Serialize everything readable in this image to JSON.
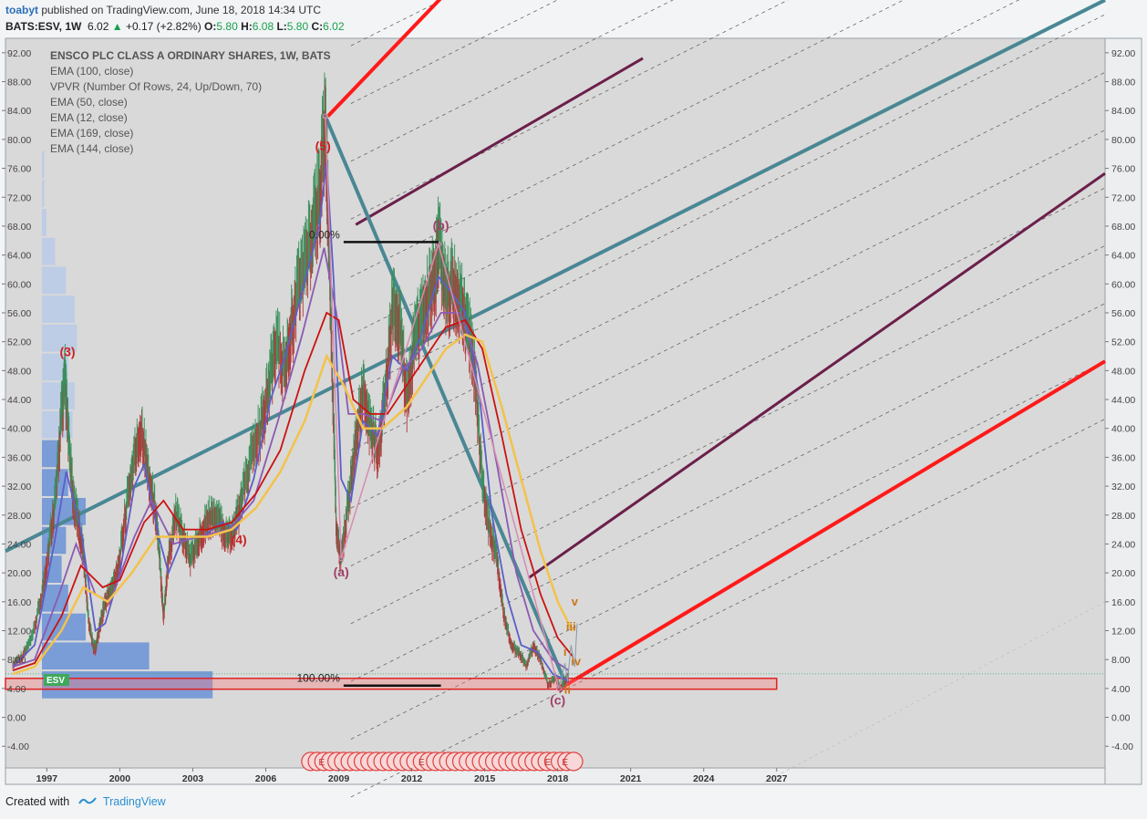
{
  "header": {
    "user": "toabyt",
    "published": " published on TradingView.com, June 18, 2018 14:34 UTC",
    "ticker": "BATS:ESV, 1W",
    "last": "6.02",
    "change": "+0.17 (+2.82%)",
    "o_label": "O:",
    "o_value": "5.80",
    "h_label": "H:",
    "h_value": "6.08",
    "l_label": "L:",
    "l_value": "5.80",
    "c_label": "C:",
    "c_value": "6.02"
  },
  "legend": {
    "title": "ENSCO PLC CLASS A ORDINARY SHARES, 1W, BATS",
    "items": [
      "EMA (100, close)",
      "VPVR (Number Of Rows, 24, Up/Down, 70)",
      "EMA (50, close)",
      "EMA (12, close)",
      "EMA (169, close)",
      "EMA (144, close)"
    ]
  },
  "footer": {
    "created_with": "Created with",
    "brand": "TradingView"
  },
  "colors": {
    "background": "#d9d9d9",
    "ema_red": "#cc1111",
    "ema_yellow": "#f3c24a",
    "ema_blue": "#5b5fc9",
    "ema_purple": "#8a5ab3",
    "pitchfork_teal": "#4a8794",
    "pitchfork_red": "#ff1a1a",
    "pitchfork_maroon": "#6b1f4a",
    "wave_label": "#a0406a",
    "subwave_label": "#c8761a",
    "vpvr_dark": "#6f95d6",
    "vpvr_light": "#b9cbe6"
  },
  "chart_data": {
    "type": "line",
    "symbol": "ESV",
    "timeframe": "1W",
    "last_price": 6.02,
    "y_ticks": [
      92,
      88,
      84,
      80,
      76,
      72,
      68,
      64,
      60,
      56,
      52,
      48,
      44,
      40,
      36,
      32,
      28,
      24,
      20,
      16,
      12,
      8,
      4,
      0,
      -4
    ],
    "y_tick_labels": [
      "92.00",
      "88.00",
      "84.00",
      "80.00",
      "76.00",
      "72.00",
      "68.00",
      "64.00",
      "60.00",
      "56.00",
      "52.00",
      "48.00",
      "44.00",
      "40.00",
      "36.00",
      "32.00",
      "28.00",
      "24.00",
      "20.00",
      "16.00",
      "12.00",
      "8.00",
      "4.00",
      "0.00",
      "-4.00"
    ],
    "ylim": [
      -7,
      94
    ],
    "x_ticks": [
      "1997",
      "2000",
      "2003",
      "2006",
      "2009",
      "2012",
      "2015",
      "2018",
      "2021",
      "2024",
      "2027"
    ],
    "x_tick_years": [
      1997,
      2000,
      2003,
      2006,
      2009,
      2012,
      2015,
      2018,
      2021,
      2024,
      2027
    ],
    "xlim": [
      1995.3,
      2040.5
    ],
    "grid": false,
    "price_series": [
      [
        1995.6,
        7.5
      ],
      [
        1996.0,
        8.5
      ],
      [
        1996.4,
        11
      ],
      [
        1996.8,
        17
      ],
      [
        1997.1,
        24
      ],
      [
        1997.4,
        32
      ],
      [
        1997.6,
        42
      ],
      [
        1997.75,
        46.5
      ],
      [
        1997.9,
        38
      ],
      [
        1998.1,
        30
      ],
      [
        1998.3,
        27
      ],
      [
        1998.5,
        23
      ],
      [
        1998.7,
        14
      ],
      [
        1998.9,
        10
      ],
      [
        1999.0,
        9.5
      ],
      [
        1999.2,
        13
      ],
      [
        1999.4,
        16
      ],
      [
        1999.7,
        18
      ],
      [
        2000.0,
        22
      ],
      [
        2000.3,
        30
      ],
      [
        2000.6,
        36
      ],
      [
        2000.9,
        40
      ],
      [
        2001.2,
        33
      ],
      [
        2001.5,
        28
      ],
      [
        2001.7,
        19
      ],
      [
        2001.8,
        14
      ],
      [
        2002.0,
        22
      ],
      [
        2002.3,
        28
      ],
      [
        2002.6,
        25
      ],
      [
        2002.9,
        22
      ],
      [
        2003.2,
        24
      ],
      [
        2003.5,
        27
      ],
      [
        2003.8,
        28
      ],
      [
        2004.1,
        27
      ],
      [
        2004.4,
        25
      ],
      [
        2004.7,
        26
      ],
      [
        2005.0,
        30
      ],
      [
        2005.4,
        36
      ],
      [
        2005.8,
        40
      ],
      [
        2006.1,
        45
      ],
      [
        2006.4,
        52
      ],
      [
        2006.8,
        48
      ],
      [
        2007.1,
        55
      ],
      [
        2007.5,
        62
      ],
      [
        2007.9,
        66
      ],
      [
        2008.2,
        72
      ],
      [
        2008.45,
        83
      ],
      [
        2008.6,
        64
      ],
      [
        2008.8,
        40
      ],
      [
        2008.9,
        26
      ],
      [
        2009.1,
        22
      ],
      [
        2009.4,
        30
      ],
      [
        2009.7,
        38
      ],
      [
        2010.0,
        45
      ],
      [
        2010.3,
        40
      ],
      [
        2010.6,
        37
      ],
      [
        2010.9,
        44
      ],
      [
        2011.2,
        56
      ],
      [
        2011.5,
        55
      ],
      [
        2011.8,
        44
      ],
      [
        2012.1,
        52
      ],
      [
        2012.4,
        55
      ],
      [
        2012.7,
        58
      ],
      [
        2013.0,
        62
      ],
      [
        2013.1,
        65.5
      ],
      [
        2013.4,
        58
      ],
      [
        2013.7,
        60
      ],
      [
        2014.0,
        57
      ],
      [
        2014.3,
        54
      ],
      [
        2014.6,
        48
      ],
      [
        2014.9,
        32
      ],
      [
        2015.2,
        26
      ],
      [
        2015.5,
        22
      ],
      [
        2015.8,
        14
      ],
      [
        2016.1,
        10
      ],
      [
        2016.4,
        9
      ],
      [
        2016.7,
        7
      ],
      [
        2017.0,
        10
      ],
      [
        2017.3,
        8
      ],
      [
        2017.6,
        4.5
      ],
      [
        2017.9,
        5.5
      ],
      [
        2018.1,
        4
      ],
      [
        2018.3,
        5
      ],
      [
        2018.45,
        6.02
      ]
    ],
    "ema_lines": [
      {
        "period": 12,
        "color": "#5b5fc9",
        "points": [
          [
            1995.6,
            7
          ],
          [
            1996.5,
            10
          ],
          [
            1997.3,
            24
          ],
          [
            1997.8,
            34
          ],
          [
            1998.4,
            26
          ],
          [
            1999.0,
            12
          ],
          [
            1999.4,
            13
          ],
          [
            2000.0,
            20
          ],
          [
            2000.6,
            32
          ],
          [
            2001.0,
            35
          ],
          [
            2001.6,
            25
          ],
          [
            2002.0,
            20
          ],
          [
            2002.6,
            25
          ],
          [
            2003.4,
            25
          ],
          [
            2004.2,
            27
          ],
          [
            2004.8,
            26
          ],
          [
            2005.5,
            33
          ],
          [
            2006.2,
            44
          ],
          [
            2006.8,
            50
          ],
          [
            2007.5,
            59
          ],
          [
            2008.2,
            68
          ],
          [
            2008.5,
            77
          ],
          [
            2008.8,
            60
          ],
          [
            2009.1,
            33
          ],
          [
            2009.5,
            30
          ],
          [
            2010.0,
            41
          ],
          [
            2010.6,
            39
          ],
          [
            2011.2,
            50
          ],
          [
            2011.8,
            48
          ],
          [
            2012.4,
            53
          ],
          [
            2013.1,
            61
          ],
          [
            2013.6,
            59
          ],
          [
            2014.2,
            56
          ],
          [
            2014.8,
            44
          ],
          [
            2015.3,
            28
          ],
          [
            2015.9,
            17
          ],
          [
            2016.5,
            10
          ],
          [
            2017.2,
            9
          ],
          [
            2017.8,
            6
          ],
          [
            2018.45,
            5
          ]
        ]
      },
      {
        "period": 50,
        "color": "#8a5ab3",
        "points": [
          [
            1995.6,
            7
          ],
          [
            1996.5,
            8
          ],
          [
            1997.5,
            17
          ],
          [
            1998.2,
            24
          ],
          [
            1999.0,
            17
          ],
          [
            1999.6,
            16
          ],
          [
            2000.6,
            25
          ],
          [
            2001.3,
            30
          ],
          [
            2002.2,
            24
          ],
          [
            2003.2,
            25
          ],
          [
            2004.5,
            26
          ],
          [
            2005.5,
            30
          ],
          [
            2006.5,
            41
          ],
          [
            2007.5,
            53
          ],
          [
            2008.4,
            65
          ],
          [
            2008.9,
            56
          ],
          [
            2009.4,
            42
          ],
          [
            2010.0,
            42
          ],
          [
            2010.8,
            41
          ],
          [
            2011.6,
            48
          ],
          [
            2012.4,
            51
          ],
          [
            2013.2,
            56
          ],
          [
            2014.0,
            56
          ],
          [
            2014.7,
            49
          ],
          [
            2015.5,
            35
          ],
          [
            2016.3,
            20
          ],
          [
            2017.0,
            12
          ],
          [
            2017.8,
            8
          ],
          [
            2018.45,
            6.5
          ]
        ]
      },
      {
        "period": 100,
        "color": "#cc1111",
        "points": [
          [
            1995.6,
            6.5
          ],
          [
            1996.5,
            7.5
          ],
          [
            1997.6,
            14
          ],
          [
            1998.4,
            21
          ],
          [
            1999.3,
            18
          ],
          [
            2000.0,
            19
          ],
          [
            2001.0,
            27
          ],
          [
            2001.8,
            30
          ],
          [
            2002.6,
            26
          ],
          [
            2003.6,
            26
          ],
          [
            2004.6,
            27
          ],
          [
            2005.6,
            31
          ],
          [
            2006.6,
            37
          ],
          [
            2007.6,
            48
          ],
          [
            2008.5,
            56
          ],
          [
            2009.0,
            55
          ],
          [
            2009.6,
            44
          ],
          [
            2010.3,
            42
          ],
          [
            2011.0,
            42
          ],
          [
            2011.8,
            46
          ],
          [
            2012.6,
            50
          ],
          [
            2013.4,
            54
          ],
          [
            2014.2,
            55
          ],
          [
            2014.9,
            51
          ],
          [
            2015.7,
            39
          ],
          [
            2016.5,
            26
          ],
          [
            2017.3,
            17
          ],
          [
            2018.0,
            11
          ],
          [
            2018.6,
            8.5
          ]
        ]
      },
      {
        "period": 144,
        "color": "#f3c24a",
        "points": [
          [
            1995.6,
            6
          ],
          [
            1996.5,
            7
          ],
          [
            1997.6,
            12
          ],
          [
            1998.5,
            18
          ],
          [
            1999.5,
            16
          ],
          [
            2000.5,
            20
          ],
          [
            2001.5,
            25
          ],
          [
            2002.5,
            25
          ],
          [
            2003.6,
            25
          ],
          [
            2004.6,
            26
          ],
          [
            2005.6,
            29
          ],
          [
            2006.6,
            34
          ],
          [
            2007.6,
            41
          ],
          [
            2008.5,
            50
          ],
          [
            2009.2,
            46
          ],
          [
            2010.0,
            40
          ],
          [
            2010.8,
            40
          ],
          [
            2011.8,
            43
          ],
          [
            2012.6,
            47
          ],
          [
            2013.4,
            51
          ],
          [
            2014.2,
            53
          ],
          [
            2014.9,
            52
          ],
          [
            2015.7,
            43
          ],
          [
            2016.5,
            33
          ],
          [
            2017.3,
            23
          ],
          [
            2018.0,
            16
          ],
          [
            2018.6,
            12
          ]
        ]
      }
    ],
    "vpvr_rows": [
      {
        "price": 4.5,
        "volume": 0.78,
        "type": "dark"
      },
      {
        "price": 8.5,
        "volume": 0.49,
        "type": "dark"
      },
      {
        "price": 12.5,
        "volume": 0.2,
        "type": "dark"
      },
      {
        "price": 16.5,
        "volume": 0.12,
        "type": "dark"
      },
      {
        "price": 20.5,
        "volume": 0.09,
        "type": "dark"
      },
      {
        "price": 24.5,
        "volume": 0.11,
        "type": "dark"
      },
      {
        "price": 28.5,
        "volume": 0.2,
        "type": "dark"
      },
      {
        "price": 32.5,
        "volume": 0.12,
        "type": "dark"
      },
      {
        "price": 36.5,
        "volume": 0.08,
        "type": "dark"
      },
      {
        "price": 40.5,
        "volume": 0.14,
        "type": "light"
      },
      {
        "price": 44.5,
        "volume": 0.15,
        "type": "light"
      },
      {
        "price": 48.5,
        "volume": 0.12,
        "type": "light"
      },
      {
        "price": 52.5,
        "volume": 0.16,
        "type": "light"
      },
      {
        "price": 56.5,
        "volume": 0.15,
        "type": "light"
      },
      {
        "price": 60.5,
        "volume": 0.11,
        "type": "light"
      },
      {
        "price": 64.5,
        "volume": 0.06,
        "type": "light"
      },
      {
        "price": 68.5,
        "volume": 0.02,
        "type": "light"
      },
      {
        "price": 72.5,
        "volume": 0.01,
        "type": "light"
      },
      {
        "price": 76.5,
        "volume": 0.01,
        "type": "light"
      }
    ],
    "wave_labels": [
      {
        "text": "(5)",
        "x": 2008.35,
        "y": 78.5,
        "color": "#cc2222"
      },
      {
        "text": "(3)",
        "x": 1997.85,
        "y": 50,
        "color": "#cc2222"
      },
      {
        "text": "(4)",
        "x": 2004.9,
        "y": 24,
        "color": "#cc2222"
      },
      {
        "text": "(a)",
        "x": 2009.1,
        "y": 19.5,
        "color": "#a0406a"
      },
      {
        "text": "(b)",
        "x": 2013.2,
        "y": 67.5,
        "color": "#a0406a"
      },
      {
        "text": "(c)",
        "x": 2018.0,
        "y": 1.8,
        "color": "#a0406a"
      },
      {
        "text": "v",
        "x": 2018.7,
        "y": 15.5,
        "color": "#c8761a"
      },
      {
        "text": "iii",
        "x": 2018.55,
        "y": 12,
        "color": "#c8761a"
      },
      {
        "text": "i",
        "x": 2018.3,
        "y": 8.5,
        "color": "#c8761a"
      },
      {
        "text": "iv",
        "x": 2018.75,
        "y": 7.2,
        "color": "#c8761a"
      },
      {
        "text": "ii",
        "x": 2018.4,
        "y": 3.3,
        "color": "#c8761a"
      }
    ],
    "fib_levels": [
      {
        "label": "0.00%",
        "price": 65.8,
        "x0": 2009.2,
        "x1": 2013.1
      },
      {
        "label": "100.00%",
        "price": 4.4,
        "x0": 2009.2,
        "x1": 2013.2
      }
    ],
    "support_zone": {
      "price_low": 3.9,
      "price_high": 5.4,
      "x0": 1995.3,
      "x1": 2027.0
    },
    "last_price_line": 6.02,
    "earnings_markers": [
      "E",
      "E",
      "E",
      "E"
    ]
  }
}
